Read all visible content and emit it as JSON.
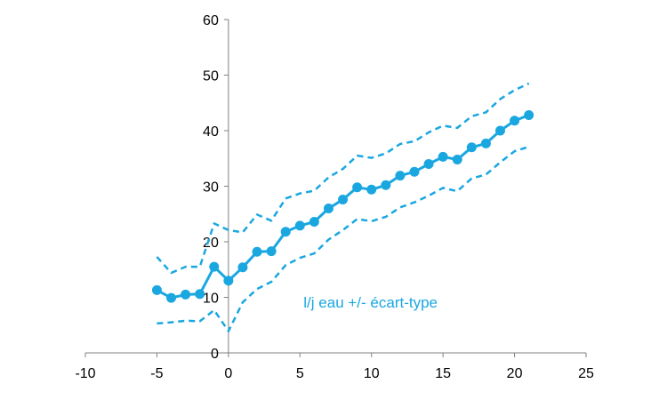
{
  "chart_data": {
    "type": "line",
    "title": "",
    "xlabel": "",
    "ylabel": "",
    "xlim": [
      -10,
      25
    ],
    "ylim": [
      0,
      60
    ],
    "x_ticks": [
      -10,
      -5,
      0,
      5,
      10,
      15,
      20,
      25
    ],
    "y_ticks": [
      0,
      10,
      20,
      30,
      40,
      50,
      60
    ],
    "grid": false,
    "legend": "none",
    "annotation": "l/j eau +/- écart-type",
    "colors": {
      "series": "#1aa7e0",
      "axis": "#808080"
    },
    "x": [
      -5,
      -4,
      -3,
      -2,
      -1,
      0,
      1,
      2,
      3,
      4,
      5,
      6,
      7,
      8,
      9,
      10,
      11,
      12,
      13,
      14,
      15,
      16,
      17,
      18,
      19,
      20,
      21
    ],
    "series": [
      {
        "name": "",
        "role": "mean",
        "style": "solid-markers",
        "values": [
          11.3,
          9.9,
          10.5,
          10.6,
          15.5,
          13.0,
          15.4,
          18.2,
          18.3,
          21.8,
          22.9,
          23.6,
          26.0,
          27.6,
          29.8,
          29.4,
          30.2,
          31.9,
          32.6,
          34.0,
          35.3,
          34.8,
          37.0,
          37.7,
          40.0,
          41.8,
          42.8
        ]
      },
      {
        "name": "",
        "role": "upper",
        "style": "dashed",
        "values": [
          17.3,
          14.4,
          15.5,
          15.5,
          23.3,
          22.1,
          21.7,
          24.9,
          23.8,
          27.8,
          28.7,
          29.2,
          31.6,
          33.1,
          35.5,
          35.1,
          35.9,
          37.6,
          38.1,
          39.7,
          40.9,
          40.5,
          42.6,
          43.3,
          45.7,
          47.3,
          48.5
        ]
      },
      {
        "name": "",
        "role": "lower",
        "style": "dashed",
        "values": [
          5.3,
          5.5,
          5.8,
          5.7,
          7.7,
          3.9,
          9.1,
          11.5,
          12.8,
          15.8,
          17.1,
          17.9,
          20.4,
          22.1,
          24.1,
          23.7,
          24.5,
          26.2,
          27.1,
          28.3,
          29.7,
          29.1,
          31.4,
          32.1,
          34.3,
          36.3,
          37.1
        ]
      }
    ]
  }
}
